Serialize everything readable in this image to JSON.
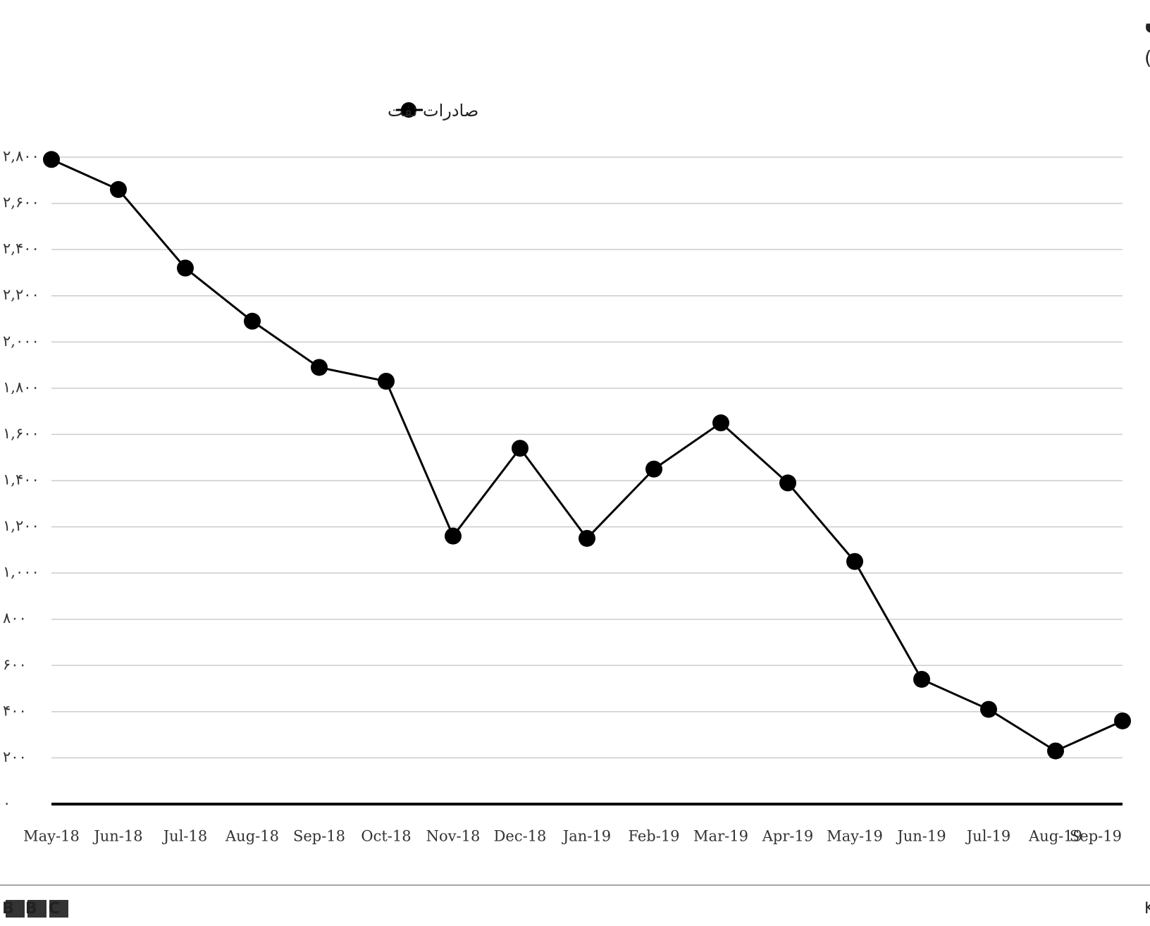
{
  "chart_data": {
    "type": "line",
    "title": "سقوط صادرات نفت ایران",
    "subtitle": "صادرات نفت ایران (هزار بشکه در روز)",
    "source": "منبع: Kpler",
    "logo": "BBC",
    "categories": [
      "May-18",
      "Jun-18",
      "Jul-18",
      "Aug-18",
      "Sep-18",
      "Oct-18",
      "Nov-18",
      "Dec-18",
      "Jan-19",
      "Feb-19",
      "Mar-19",
      "Apr-19",
      "May-19",
      "Jun-19",
      "Jul-19",
      "Aug-19",
      "Sep-19"
    ],
    "series": [
      {
        "name": "صادرات نفت",
        "color": "#000000",
        "values": [
          2790,
          2660,
          2320,
          2090,
          1890,
          1830,
          1160,
          1540,
          1150,
          1450,
          1650,
          1390,
          1050,
          540,
          410,
          230,
          360
        ]
      }
    ],
    "ylim": [
      0,
      2800
    ],
    "yticks": [
      {
        "value": 0,
        "label": "۰"
      },
      {
        "value": 200,
        "label": "۲۰۰"
      },
      {
        "value": 400,
        "label": "۴۰۰"
      },
      {
        "value": 600,
        "label": "۶۰۰"
      },
      {
        "value": 800,
        "label": "۸۰۰"
      },
      {
        "value": 1000,
        "label": "۱,۰۰۰"
      },
      {
        "value": 1200,
        "label": "۱,۲۰۰"
      },
      {
        "value": 1400,
        "label": "۱,۴۰۰"
      },
      {
        "value": 1600,
        "label": "۱,۶۰۰"
      },
      {
        "value": 1800,
        "label": "۱,۸۰۰"
      },
      {
        "value": 2000,
        "label": "۲,۰۰۰"
      },
      {
        "value": 2200,
        "label": "۲,۲۰۰"
      },
      {
        "value": 2400,
        "label": "۲,۴۰۰"
      },
      {
        "value": 2600,
        "label": "۲,۶۰۰"
      },
      {
        "value": 2800,
        "label": "۲,۸۰۰"
      }
    ],
    "grid": true
  }
}
